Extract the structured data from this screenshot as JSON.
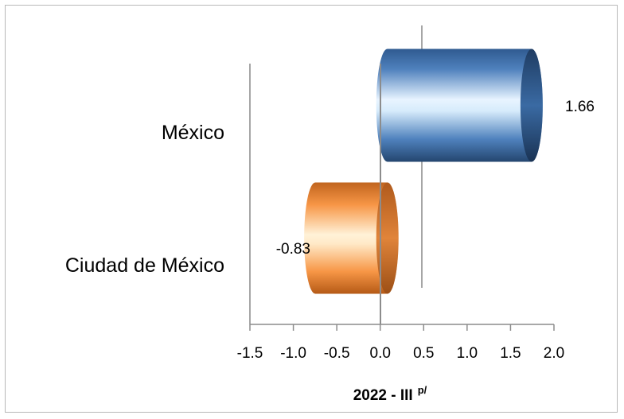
{
  "chart_data": {
    "type": "bar",
    "orientation": "horizontal",
    "style": "3d-cylinder",
    "categories": [
      "México",
      "Ciudad de México"
    ],
    "values": [
      1.66,
      -0.83
    ],
    "data_labels": [
      "1.66",
      "-0.83"
    ],
    "colors": [
      "#4f81bd",
      "#f79646"
    ],
    "xlim": [
      -1.5,
      2.0
    ],
    "xticks": [
      -1.5,
      -1.0,
      -0.5,
      0.0,
      0.5,
      1.0,
      1.5,
      2.0
    ],
    "xtick_labels": [
      "-1.5",
      "-1.0",
      "-0.5",
      "0.0",
      "0.5",
      "1.0",
      "1.5",
      "2.0"
    ],
    "xlabel": "2022 - III",
    "xlabel_superscript": "p/",
    "grid": false,
    "legend": "none"
  }
}
